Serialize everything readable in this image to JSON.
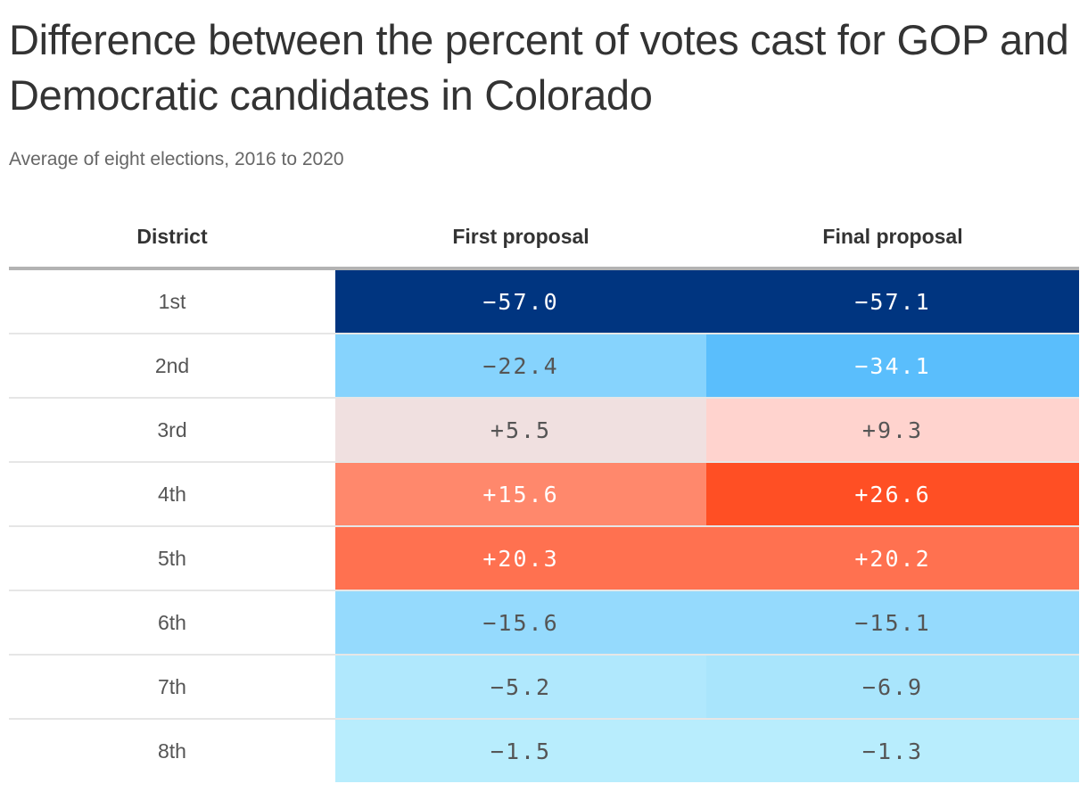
{
  "chart_data": {
    "type": "table",
    "title": "Difference between the percent of votes cast for GOP and Democratic candidates in Colorado",
    "subtitle": "Average of eight elections, 2016 to 2020",
    "columns": [
      "District",
      "First proposal",
      "Final proposal"
    ],
    "rows": [
      {
        "district": "1st",
        "first": "−57.0",
        "final": "−57.1",
        "first_value": -57.0,
        "final_value": -57.1,
        "first_color": "#003580",
        "final_color": "#003580"
      },
      {
        "district": "2nd",
        "first": "−22.4",
        "final": "−34.1",
        "first_value": -22.4,
        "final_value": -34.1,
        "first_color": "#86d3fd",
        "final_color": "#5abefc"
      },
      {
        "district": "3rd",
        "first": "+5.5",
        "final": "+9.3",
        "first_value": 5.5,
        "final_value": 9.3,
        "first_color": "#f0e0e0",
        "final_color": "#ffd3ce"
      },
      {
        "district": "4th",
        "first": "+15.6",
        "final": "+26.6",
        "first_value": 15.6,
        "final_value": 26.6,
        "first_color": "#ff886c",
        "final_color": "#ff4f24"
      },
      {
        "district": "5th",
        "first": "+20.3",
        "final": "+20.2",
        "first_value": 20.3,
        "final_value": 20.2,
        "first_color": "#ff7150",
        "final_color": "#ff7150"
      },
      {
        "district": "6th",
        "first": "−15.6",
        "final": "−15.1",
        "first_value": -15.6,
        "final_value": -15.1,
        "first_color": "#95dafd",
        "final_color": "#95dafd"
      },
      {
        "district": "7th",
        "first": "−5.2",
        "final": "−6.9",
        "first_value": -5.2,
        "final_value": -6.9,
        "first_color": "#b0e8fd",
        "final_color": "#a9e5fc"
      },
      {
        "district": "8th",
        "first": "−1.5",
        "final": "−1.3",
        "first_value": -1.5,
        "final_value": -1.3,
        "first_color": "#b8edfd",
        "final_color": "#b8edfd"
      }
    ]
  }
}
